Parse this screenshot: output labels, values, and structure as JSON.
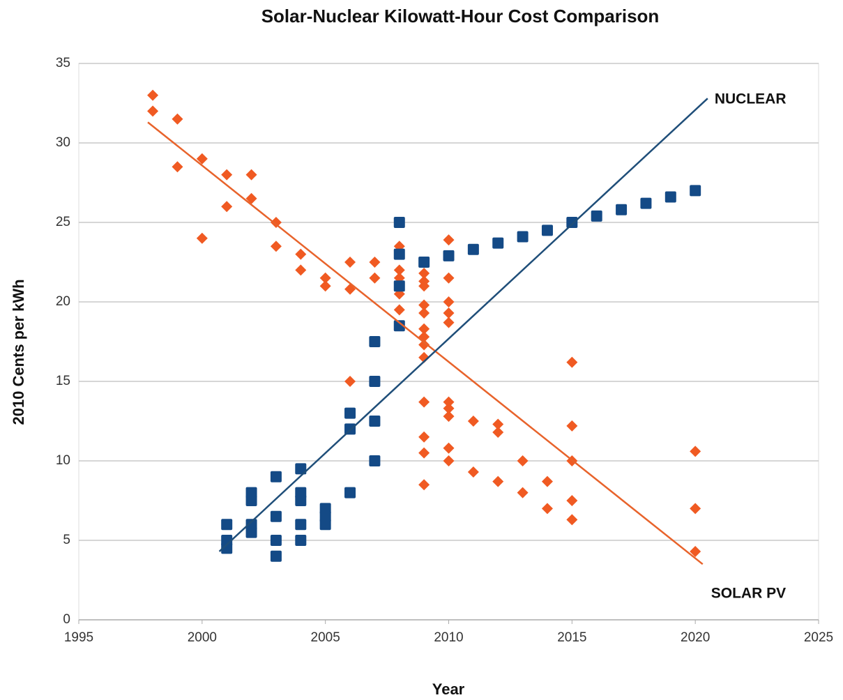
{
  "chart_data": {
    "type": "scatter",
    "title": "Solar-Nuclear Kilowatt-Hour Cost Comparison",
    "x_label": "Year",
    "y_label": "2010 Cents per kWh",
    "xlim": [
      1995,
      2025
    ],
    "xticks": [
      1995,
      2000,
      2005,
      2010,
      2015,
      2020,
      2025
    ],
    "ylim": [
      0,
      35
    ],
    "yticks": [
      0,
      5,
      10,
      15,
      20,
      25,
      30,
      35
    ],
    "grid": true,
    "series": [
      {
        "name": "SOLAR PV",
        "color": "#f05a22",
        "marker": "diamond",
        "x": [
          1998,
          1998,
          1999,
          1999,
          2000,
          2000,
          2001,
          2001,
          2002,
          2002,
          2003,
          2003,
          2004,
          2004,
          2005,
          2005,
          2006,
          2006,
          2006,
          2007,
          2007,
          2008,
          2008,
          2008,
          2008,
          2008,
          2008,
          2009,
          2009,
          2009,
          2009,
          2009,
          2009,
          2009,
          2009,
          2009,
          2009,
          2009,
          2009,
          2009,
          2010,
          2010,
          2010,
          2010,
          2010,
          2010,
          2010,
          2010,
          2010,
          2010,
          2011,
          2011,
          2012,
          2012,
          2012,
          2013,
          2013,
          2014,
          2014,
          2015,
          2015,
          2015,
          2015,
          2015,
          2020,
          2020,
          2020
        ],
        "values": [
          33,
          32,
          31.5,
          28.5,
          29,
          24,
          28,
          26,
          28,
          26.5,
          25,
          23.5,
          23,
          22,
          21.5,
          21,
          22.5,
          20.8,
          15,
          22.5,
          21.5,
          23.5,
          22,
          21.5,
          20.5,
          19.5,
          18.5,
          21.8,
          21.3,
          21,
          19.8,
          19.3,
          18.3,
          17.8,
          17.3,
          16.5,
          13.7,
          11.5,
          10.5,
          8.5,
          23.9,
          21.5,
          20,
          19.3,
          18.7,
          13.7,
          13.3,
          12.8,
          10.8,
          10,
          12.5,
          9.3,
          12.3,
          11.8,
          8.7,
          10,
          8,
          8.7,
          7,
          16.2,
          12.2,
          10,
          7.5,
          6.3,
          10.6,
          7,
          4.3
        ],
        "trend": {
          "color": "#e8632b",
          "x": [
            1997.8,
            2020.3
          ],
          "values": [
            31.3,
            3.5
          ]
        }
      },
      {
        "name": "NUCLEAR",
        "color": "#144a86",
        "marker": "square",
        "x": [
          2001,
          2001,
          2001,
          2002,
          2002,
          2002,
          2002,
          2003,
          2003,
          2003,
          2003,
          2004,
          2004,
          2004,
          2004,
          2004,
          2005,
          2005,
          2005,
          2006,
          2006,
          2006,
          2007,
          2007,
          2007,
          2007,
          2008,
          2008,
          2008,
          2008,
          2009,
          2010,
          2011,
          2012,
          2013,
          2014,
          2015,
          2016,
          2017,
          2018,
          2019,
          2020
        ],
        "values": [
          6,
          5,
          4.5,
          8,
          7.5,
          6,
          5.5,
          9,
          6.5,
          5,
          4,
          9.5,
          8,
          7.5,
          6,
          5,
          7,
          6.5,
          6,
          13,
          12,
          8,
          17.5,
          15,
          12.5,
          10,
          25,
          23,
          21,
          18.5,
          22.5,
          22.9,
          23.3,
          23.7,
          24.1,
          24.5,
          25,
          25.4,
          25.8,
          26.2,
          26.6,
          27
        ],
        "trend": {
          "color": "#1f4e79",
          "x": [
            2000.7,
            2020.5
          ],
          "values": [
            4.3,
            32.8
          ]
        }
      }
    ]
  }
}
